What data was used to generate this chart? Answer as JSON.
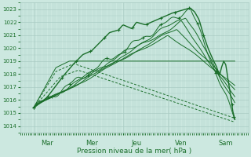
{
  "bg_color": "#cce8e0",
  "grid_color": "#aaccc4",
  "line_color": "#1a6e2a",
  "title": "Pression niveau de la mer( hPa )",
  "ylim": [
    1013.5,
    1023.5
  ],
  "yticks": [
    1014,
    1015,
    1016,
    1017,
    1018,
    1019,
    1020,
    1021,
    1022,
    1023
  ],
  "day_positions": [
    0.0,
    1.0,
    2.0,
    3.0,
    4.0
  ],
  "day_labels": [
    "Mar",
    "Mer",
    "Jeu",
    "Ven",
    "Sam"
  ],
  "xmin": -0.3,
  "xmax": 4.8,
  "figsize": [
    3.2,
    2.0
  ],
  "dpi": 100
}
